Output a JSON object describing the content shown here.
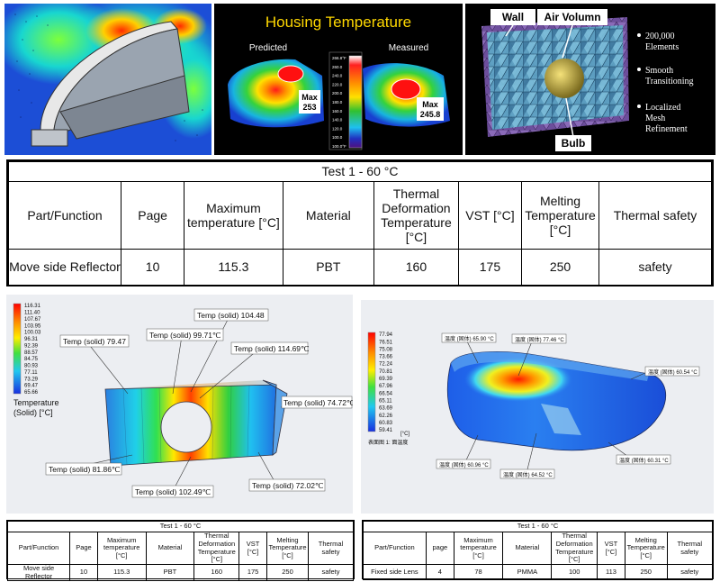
{
  "top": {
    "housing_title": "Housing Temperature",
    "predicted_label": "Predicted",
    "measured_label": "Measured",
    "predicted_max": "Max\n253",
    "predicted_max_line1": "Max",
    "predicted_max_line2": "253",
    "measured_max_line1": "Max",
    "measured_max_line2": "245.8",
    "colorbar_ticks": [
      "266.8°F",
      "260.0",
      "240.0",
      "220.0",
      "200.0",
      "180.0",
      "160.0",
      "140.0",
      "120.0",
      "100.0",
      "100.0°F"
    ],
    "mesh_labels": {
      "wall": "Wall",
      "air": "Air Volumn",
      "bulb": "Bulb"
    },
    "mesh_bullets": [
      "200,000 Elements",
      "Smooth Transitioning",
      "Localized Mesh Refinement"
    ]
  },
  "big_table": {
    "title": "Test 1 - 60 °C",
    "headers": [
      "Part/Function",
      "Page",
      "Maximum temperature [°C]",
      "Material",
      "Thermal Deformation Temperature [°C]",
      "VST [°C]",
      "Melting Temperature [°C]",
      "Thermal safety"
    ],
    "row": [
      "Move side Reflector",
      "10",
      "115.3",
      "PBT",
      "160",
      "175",
      "250",
      "safety"
    ]
  },
  "reflector": {
    "colorbar": [
      "116.31",
      "111.40",
      "107.67",
      "103.95",
      "100.03",
      "96.31",
      "92.39",
      "88.57",
      "84.75",
      "80.93",
      "77.11",
      "73.29",
      "69.47",
      "65.66"
    ],
    "legend_line1": "Temperature",
    "legend_line2": "(Solid)  [°C]",
    "callouts": [
      "Temp (solid) 104.48",
      "Temp (solid) 79.47",
      "Temp (solid) 99.71℃",
      "Temp (solid) 114.69℃",
      "Temp (solid) 74.72℃",
      "Temp (solid) 81.86℃",
      "Temp (solid) 102.49℃",
      "Temp (solid) 72.02℃"
    ]
  },
  "lens": {
    "colorbar": [
      "77.94",
      "76.51",
      "75.08",
      "73.66",
      "72.24",
      "70.81",
      "69.39",
      "67.96",
      "66.54",
      "65.11",
      "63.69",
      "62.26",
      "60.83",
      "59.41"
    ],
    "unit": "[°C]",
    "caption": "表面图 1: 面温度",
    "callouts": [
      "温度 (固体) 65.90 °C",
      "温度 (固体) 77.46 °C",
      "温度 (固体) 60.54 °C",
      "温度 (固体) 60.31 °C",
      "温度 (固体) 60.96 °C",
      "温度 (固体) 64.52 °C"
    ]
  },
  "small_table_1": {
    "title": "Test 1 - 60 °C",
    "headers": [
      "Part/Function",
      "Page",
      "Maximum temperature [°C]",
      "Material",
      "Thermal Deformation Temperature [°C]",
      "VST [°C]",
      "Melting Temperature [°C]",
      "Thermal safety"
    ],
    "row": [
      "Move side Reflector",
      "10",
      "115.3",
      "PBT",
      "160",
      "175",
      "250",
      "safety"
    ]
  },
  "small_table_2": {
    "title": "Test 1 - 60 °C",
    "headers": [
      "Part/Function",
      "page",
      "Maximum temperature [°C]",
      "Material",
      "Thermal Deformation Temperature [°C]",
      "VST [°C]",
      "Melting Temperature [°C]",
      "Thermal safety"
    ],
    "row": [
      "Fixed side Lens",
      "4",
      "78",
      "PMMA",
      "100",
      "113",
      "250",
      "safety"
    ]
  }
}
